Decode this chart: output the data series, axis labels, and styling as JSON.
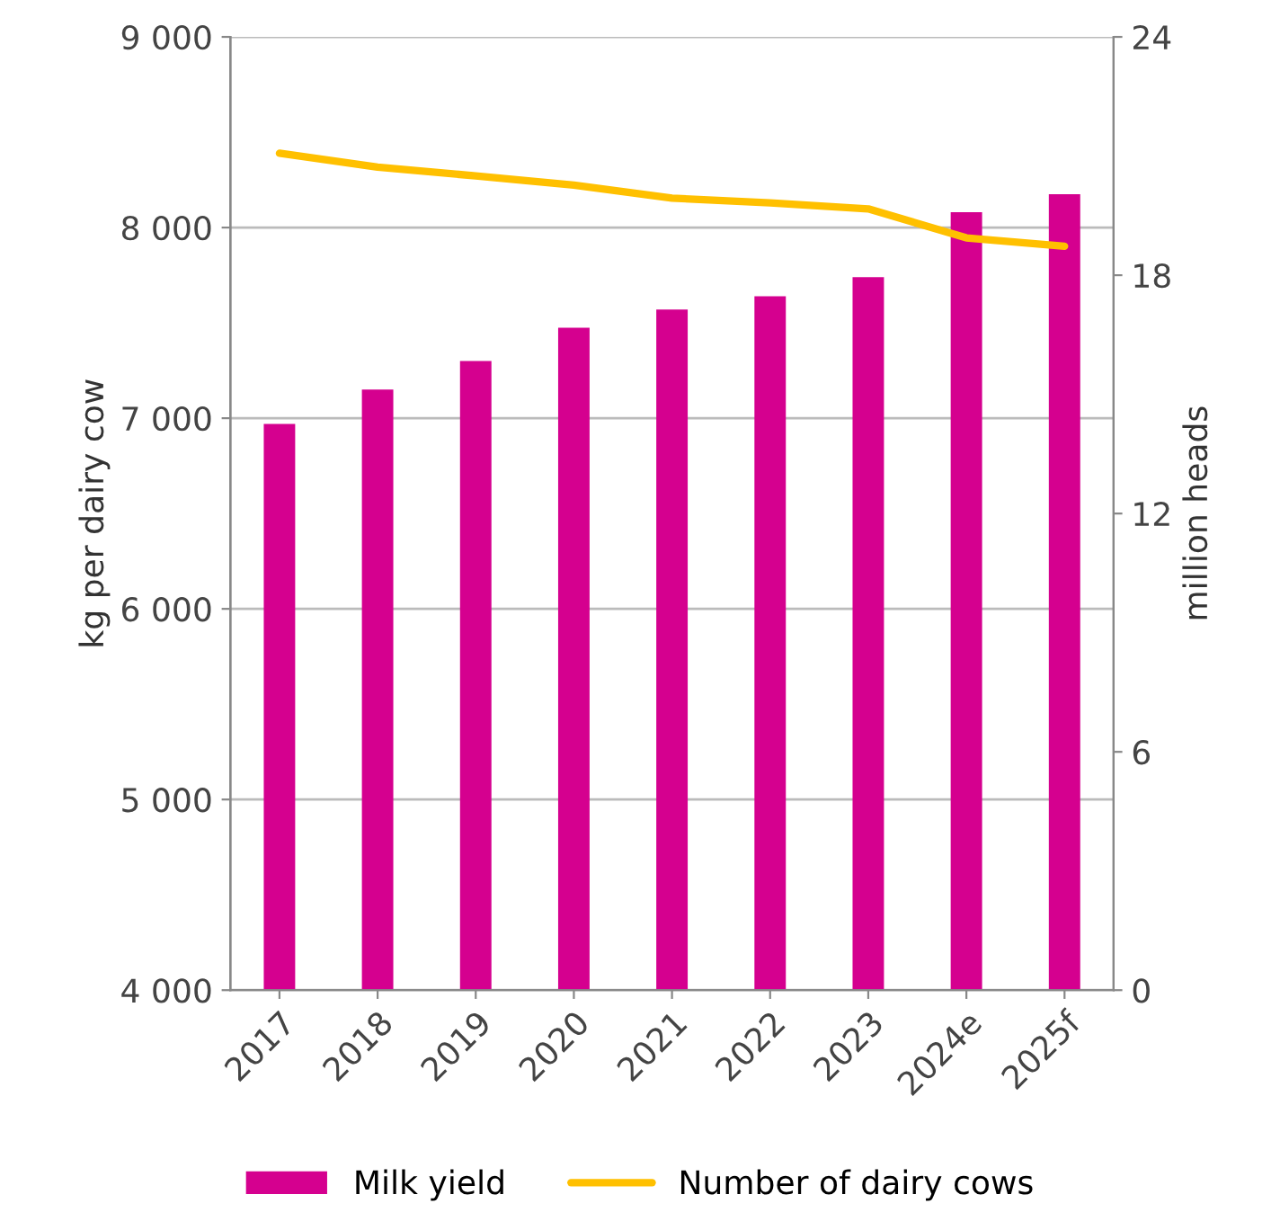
{
  "chart_data": {
    "type": "bar",
    "categories": [
      "2017",
      "2018",
      "2019",
      "2020",
      "2021",
      "2022",
      "2023",
      "2024e",
      "2025f"
    ],
    "ylabel": "kg per dairy cow",
    "y2label": "million heads",
    "ylim": [
      4000,
      9000
    ],
    "yticks": [
      {
        "value": 4000,
        "label": "4 000"
      },
      {
        "value": 5000,
        "label": "5 000"
      },
      {
        "value": 6000,
        "label": "6 000"
      },
      {
        "value": 7000,
        "label": "7 000"
      },
      {
        "value": 8000,
        "label": "8 000"
      },
      {
        "value": 9000,
        "label": "9 000"
      }
    ],
    "y2lim": [
      0,
      24
    ],
    "y2ticks": [
      0,
      6,
      12,
      18,
      24
    ],
    "grid": "y",
    "legend": "bottom",
    "series": [
      {
        "name": "Milk yield",
        "color": "#d5008f",
        "values": [
          6970,
          7150,
          7300,
          7475,
          7570,
          7640,
          7740,
          8080,
          8175
        ]
      },
      {
        "name": "Number of dairy cows",
        "type": "line",
        "axis": "y2",
        "color": "#ffc000",
        "values": [
          21.07,
          20.72,
          20.5,
          20.27,
          19.94,
          19.82,
          19.67,
          18.94,
          18.73
        ]
      }
    ]
  }
}
